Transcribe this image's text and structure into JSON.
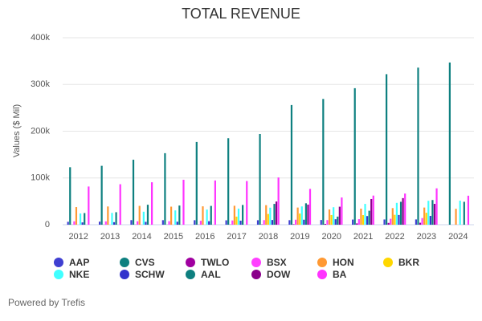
{
  "chart_data": {
    "type": "bar",
    "title": "TOTAL REVENUE",
    "y_label": "Values ($ Mil)",
    "footer": "Powered by Trefis",
    "categories": [
      "2012",
      "2013",
      "2014",
      "2015",
      "2016",
      "2017",
      "2018",
      "2019",
      "2020",
      "2021",
      "2022",
      "2023",
      "2024"
    ],
    "ylim": [
      0,
      400000
    ],
    "yticks": [
      0,
      {
        "value": 100000,
        "label": "100k"
      },
      {
        "value": 200000,
        "label": "200k"
      },
      {
        "value": 300000,
        "label": "300k"
      },
      {
        "value": 400000,
        "label": "400k"
      }
    ],
    "grid": true,
    "series": [
      {
        "name": "AAP",
        "color": "#3f3fd1",
        "values": [
          6200,
          6500,
          9800,
          9700,
          9600,
          9400,
          9600,
          9700,
          10100,
          11000,
          11200,
          11300,
          null
        ]
      },
      {
        "name": "CVS",
        "color": "#0e8080",
        "values": [
          123000,
          126000,
          139000,
          153000,
          177000,
          185000,
          194000,
          256000,
          269000,
          292000,
          322000,
          336000,
          347000
        ]
      },
      {
        "name": "TWLO",
        "color": "#a000a0",
        "values": [
          140,
          200,
          230,
          170,
          280,
          400,
          650,
          1100,
          1800,
          2800,
          3800,
          4200,
          null
        ]
      },
      {
        "name": "BSX",
        "color": "#ff40ff",
        "values": [
          7200,
          7100,
          7400,
          7500,
          8400,
          9000,
          9800,
          10700,
          9900,
          11900,
          12700,
          14200,
          null
        ]
      },
      {
        "name": "HON",
        "color": "#ff9933",
        "values": [
          37700,
          39000,
          40300,
          38600,
          39300,
          40500,
          41800,
          36700,
          32600,
          34400,
          35500,
          36700,
          34000
        ]
      },
      {
        "name": "BKR",
        "color": "#ffd700",
        "values": [
          null,
          null,
          null,
          null,
          null,
          17300,
          22900,
          23800,
          20700,
          20500,
          21200,
          25500,
          null
        ]
      },
      {
        "name": "NKE",
        "color": "#40ffff",
        "values": [
          24100,
          25300,
          27800,
          30600,
          32400,
          34400,
          36400,
          39100,
          37400,
          44500,
          46700,
          51200,
          51400
        ]
      },
      {
        "name": "SCHW",
        "color": "#3333cc",
        "values": [
          4900,
          5400,
          6100,
          6400,
          7500,
          8600,
          10100,
          10700,
          11700,
          18500,
          20800,
          18800,
          null
        ]
      },
      {
        "name": "AAL",
        "color": "#0e7f7f",
        "values": [
          24900,
          26700,
          42700,
          41000,
          40200,
          42200,
          44500,
          45800,
          17300,
          29900,
          49000,
          52800,
          49000
        ]
      },
      {
        "name": "DOW",
        "color": "#8b008b",
        "values": [
          null,
          null,
          null,
          null,
          null,
          null,
          49600,
          43000,
          38500,
          55000,
          56900,
          44600,
          null
        ]
      },
      {
        "name": "BA",
        "color": "#ff33ff",
        "values": [
          81700,
          86600,
          90800,
          96100,
          94600,
          93400,
          101000,
          76600,
          58200,
          62300,
          66600,
          77800,
          62000
        ]
      }
    ]
  }
}
